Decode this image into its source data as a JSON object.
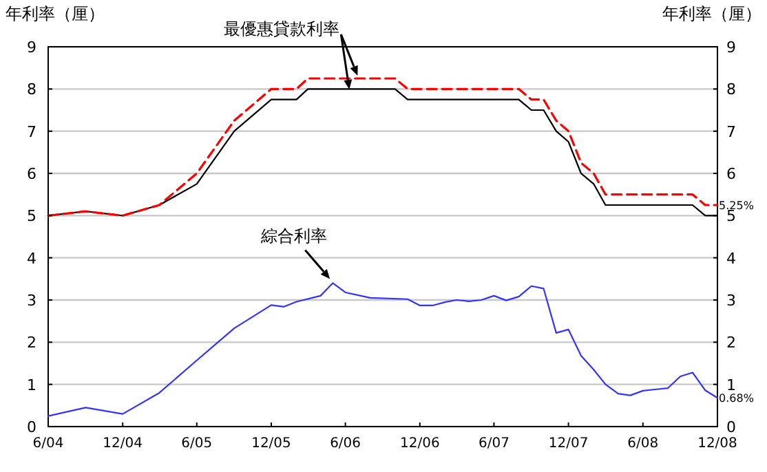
{
  "chart_data": {
    "type": "line",
    "ylabel": "年利率（厘）",
    "y2label": "年利率（厘）",
    "xlim": [
      "2004-06",
      "2008-12"
    ],
    "xticks": [
      {
        "value": "2004-06",
        "label": "6/04"
      },
      {
        "value": "2004-12",
        "label": "12/04"
      },
      {
        "value": "2005-06",
        "label": "6/05"
      },
      {
        "value": "2005-12",
        "label": "12/05"
      },
      {
        "value": "2006-06",
        "label": "6/06"
      },
      {
        "value": "2006-12",
        "label": "12/06"
      },
      {
        "value": "2007-06",
        "label": "6/07"
      },
      {
        "value": "2007-12",
        "label": "12/07"
      },
      {
        "value": "2008-06",
        "label": "6/08"
      },
      {
        "value": "2008-12",
        "label": "12/08"
      }
    ],
    "ylim": [
      0,
      9
    ],
    "yticks": [
      0,
      1,
      2,
      3,
      4,
      5,
      6,
      7,
      8,
      9
    ],
    "y2lim": [
      0,
      9
    ],
    "y2ticks": [
      0,
      1,
      2,
      3,
      4,
      5,
      6,
      7,
      8,
      9
    ],
    "grid": "y",
    "marker": "none",
    "series": [
      {
        "color": "#000000",
        "line_style": "solid",
        "x": [
          "2004-06",
          "2004-09",
          "2004-12",
          "2005-03",
          "2005-06",
          "2005-09",
          "2005-12",
          "2006-02",
          "2006-03",
          "2006-10",
          "2006-11",
          "2007-08",
          "2007-09",
          "2007-10",
          "2007-11",
          "2007-12",
          "2008-01",
          "2008-02",
          "2008-03",
          "2008-10",
          "2008-11",
          "2008-12"
        ],
        "values": [
          5.0,
          5.1,
          5.0,
          5.25,
          5.75,
          7.0,
          7.75,
          7.75,
          8.0,
          8.0,
          7.75,
          7.75,
          7.5,
          7.5,
          7.0,
          6.75,
          6.0,
          5.75,
          5.25,
          5.25,
          5.0,
          5.0
        ]
      },
      {
        "color": "#ff0000",
        "line_style": "dashed",
        "x": [
          "2004-06",
          "2004-09",
          "2004-12",
          "2005-03",
          "2005-06",
          "2005-09",
          "2005-12",
          "2006-02",
          "2006-03",
          "2006-10",
          "2006-11",
          "2007-08",
          "2007-09",
          "2007-10",
          "2007-11",
          "2007-12",
          "2008-01",
          "2008-02",
          "2008-03",
          "2008-10",
          "2008-11",
          "2008-12"
        ],
        "values": [
          5.0,
          5.1,
          5.0,
          5.25,
          6.0,
          7.25,
          8.0,
          8.0,
          8.25,
          8.25,
          8.0,
          8.0,
          7.75,
          7.75,
          7.25,
          7.0,
          6.25,
          6.0,
          5.5,
          5.5,
          5.25,
          5.25
        ]
      },
      {
        "color": "#3333ff",
        "line_style": "solid",
        "x": [
          "2004-06",
          "2004-09",
          "2004-12",
          "2005-03",
          "2005-06",
          "2005-09",
          "2005-12",
          "2006-01",
          "2006-02",
          "2006-04",
          "2006-05",
          "2006-06",
          "2006-08",
          "2006-11",
          "2006-12",
          "2007-01",
          "2007-02",
          "2007-03",
          "2007-04",
          "2007-05",
          "2007-06",
          "2007-07",
          "2007-08",
          "2007-09",
          "2007-10",
          "2007-11",
          "2007-12",
          "2008-01",
          "2008-02",
          "2008-03",
          "2008-04",
          "2008-05",
          "2008-06",
          "2008-07",
          "2008-08",
          "2008-09",
          "2008-10",
          "2008-11",
          "2008-12"
        ],
        "values": [
          0.25,
          0.45,
          0.3,
          0.8,
          1.57,
          2.33,
          2.88,
          2.84,
          2.96,
          3.1,
          3.4,
          3.18,
          3.05,
          3.02,
          2.87,
          2.87,
          2.95,
          3.0,
          2.97,
          3.0,
          3.1,
          2.99,
          3.08,
          3.33,
          3.27,
          2.22,
          2.3,
          1.68,
          1.35,
          1.0,
          0.78,
          0.74,
          0.85,
          0.88,
          0.91,
          1.19,
          1.28,
          0.86,
          0.68
        ]
      }
    ],
    "annotations": [
      {
        "text": "最優惠貸款利率",
        "x": "2006-07",
        "y": 8.25
      },
      {
        "text": "綜合利率",
        "x": "2006-05",
        "y": 3.4
      },
      {
        "text": "5.25%",
        "x": "2008-12",
        "y": 5.25
      },
      {
        "text": "0.68%",
        "x": "2008-12",
        "y": 0.68
      }
    ]
  }
}
